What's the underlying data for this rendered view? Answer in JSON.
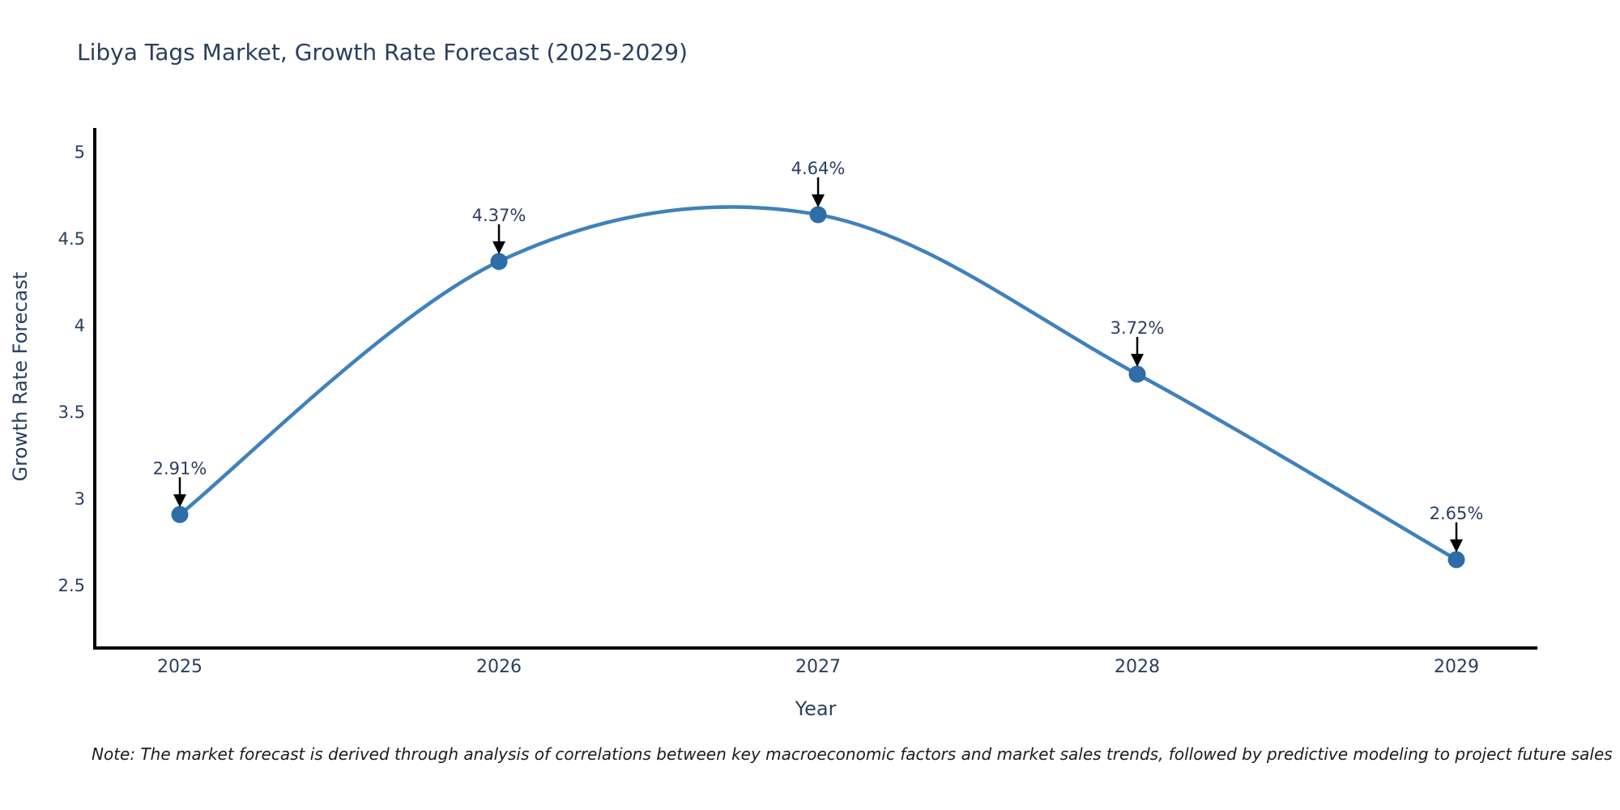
{
  "title": "Libya Tags Market, Growth Rate Forecast (2025-2029)",
  "note": "Note: The market forecast is derived through analysis of correlations between key macroeconomic factors and market sales trends, followed by predictive modeling to project future sales",
  "colors": {
    "line": "#3f81bb",
    "marker": "#2e6da8",
    "axis": "#000000",
    "arrow": "#000000",
    "label_text": "#2a3f5f",
    "note_text": "#1c1c1c",
    "background": "#ffffff"
  },
  "chart_data": {
    "type": "line",
    "title": "Libya Tags Market, Growth Rate Forecast (2025-2029)",
    "xlabel": "Year",
    "ylabel": "Growth Rate Forecast",
    "x": [
      2025,
      2026,
      2027,
      2028,
      2029
    ],
    "values": [
      2.91,
      4.37,
      4.64,
      3.72,
      2.65
    ],
    "point_labels": [
      "2.91%",
      "4.37%",
      "4.64%",
      "3.72%",
      "2.65%"
    ],
    "x_ticks": [
      "2025",
      "2026",
      "2027",
      "2028",
      "2029"
    ],
    "y_ticks": [
      "5",
      "4.5",
      "4",
      "3.5",
      "3",
      "2.5"
    ],
    "y_tick_values": [
      5,
      4.5,
      4,
      3.5,
      3,
      2.5
    ],
    "ylim": [
      2.15,
      5.16
    ],
    "line_shape": "spline",
    "grid": false,
    "legend": false,
    "annotations": "arrow-down-to-point"
  }
}
